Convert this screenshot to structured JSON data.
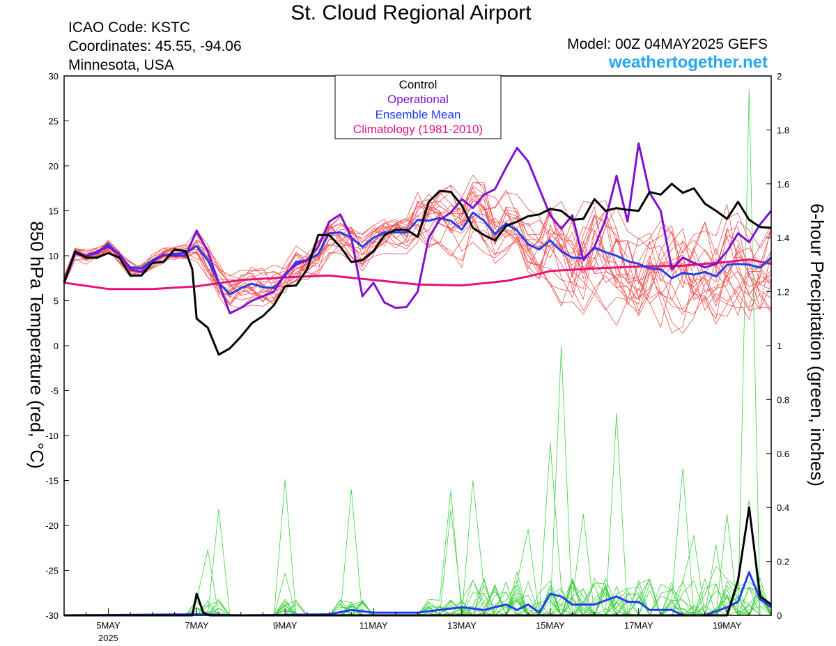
{
  "header": {
    "title": "St. Cloud Regional Airport",
    "icao": "ICAO Code: KSTC",
    "coordinates": "Coordinates: 45.55, -94.06",
    "location": "Minnesota, USA",
    "model": "Model: 00Z 04MAY2025 GEFS",
    "site": "weathertogether.net"
  },
  "colors": {
    "ensemble_temp": "#f05050",
    "ensemble_precip": "#40d040",
    "control": "#000000",
    "operational": "#8010d0",
    "ensemble_mean": "#2040f0",
    "climatology": "#e8107a",
    "site": "#22a7f0"
  },
  "chart_data": {
    "type": "line",
    "y_left_label": "850 hPa Temperature (red, °C)",
    "y_right_label": "6-hour Precipitation (green, inches)",
    "y_left_range": [
      -30,
      30
    ],
    "y_left_ticks": [
      "30",
      "25",
      "20",
      "15",
      "10",
      "5",
      "0",
      "-5",
      "-10",
      "-15",
      "-20",
      "-25",
      "-30"
    ],
    "y_right_range": [
      0,
      2
    ],
    "y_right_ticks": [
      "2",
      "1.8",
      "1.6",
      "1.4",
      "1.2",
      "1",
      "0.8",
      "0.6",
      "0.4",
      "0.2",
      "0"
    ],
    "x_unit": "day of May 2025",
    "x_range": [
      4,
      20
    ],
    "x_ticks": [
      {
        "day": 5,
        "label": "5MAY",
        "sub": "2025"
      },
      {
        "day": 7,
        "label": "7MAY",
        "sub": ""
      },
      {
        "day": 9,
        "label": "9MAY",
        "sub": ""
      },
      {
        "day": 11,
        "label": "11MAY",
        "sub": ""
      },
      {
        "day": 13,
        "label": "13MAY",
        "sub": ""
      },
      {
        "day": 15,
        "label": "15MAY",
        "sub": ""
      },
      {
        "day": 17,
        "label": "17MAY",
        "sub": ""
      },
      {
        "day": 19,
        "label": "19MAY",
        "sub": ""
      }
    ],
    "legend": {
      "placement": "top-center",
      "entries": [
        "Control",
        "Operational",
        "Ensemble Mean",
        "Climatology (1981-2010)"
      ]
    },
    "temp_series": {
      "control": [
        [
          4,
          7
        ],
        [
          4.25,
          10.5
        ],
        [
          4.5,
          9.8
        ],
        [
          4.75,
          9.8
        ],
        [
          5,
          10.3
        ],
        [
          5.25,
          9.8
        ],
        [
          5.5,
          7.8
        ],
        [
          5.75,
          7.8
        ],
        [
          6,
          9.2
        ],
        [
          6.25,
          9.3
        ],
        [
          6.5,
          10.7
        ],
        [
          6.75,
          10.5
        ],
        [
          6.9,
          8.5
        ],
        [
          7,
          3
        ],
        [
          7.25,
          2
        ],
        [
          7.5,
          -1
        ],
        [
          7.75,
          -0.3
        ],
        [
          8,
          1
        ],
        [
          8.25,
          2.5
        ],
        [
          8.5,
          3.3
        ],
        [
          8.75,
          4.5
        ],
        [
          9,
          6.6
        ],
        [
          9.25,
          6.7
        ],
        [
          9.5,
          8.5
        ],
        [
          9.75,
          12.3
        ],
        [
          10,
          12.3
        ],
        [
          10.25,
          11
        ],
        [
          10.5,
          9.3
        ],
        [
          10.75,
          9.5
        ],
        [
          11,
          10.5
        ],
        [
          11.25,
          12.3
        ],
        [
          11.5,
          12.9
        ],
        [
          11.75,
          12.9
        ],
        [
          12,
          12.1
        ],
        [
          12.25,
          16
        ],
        [
          12.5,
          17.2
        ],
        [
          12.75,
          17.1
        ],
        [
          13,
          15.6
        ],
        [
          13.25,
          13.1
        ],
        [
          13.5,
          12.3
        ],
        [
          13.75,
          11.7
        ],
        [
          14,
          13.3
        ],
        [
          14.25,
          13.8
        ],
        [
          14.5,
          14.4
        ],
        [
          14.75,
          14.6
        ],
        [
          15,
          15.2
        ],
        [
          15.25,
          15
        ],
        [
          15.5,
          14
        ],
        [
          15.75,
          14.1
        ],
        [
          16,
          16.3
        ],
        [
          16.25,
          15
        ],
        [
          16.5,
          15.3
        ],
        [
          16.75,
          15.1
        ],
        [
          17,
          15
        ],
        [
          17.25,
          17.1
        ],
        [
          17.5,
          16.8
        ],
        [
          17.75,
          18
        ],
        [
          18,
          17
        ],
        [
          18.25,
          17.5
        ],
        [
          18.5,
          15.8
        ],
        [
          18.75,
          15
        ],
        [
          19,
          14.1
        ],
        [
          19.25,
          16
        ],
        [
          19.5,
          14
        ],
        [
          19.75,
          13.2
        ],
        [
          20,
          13.1
        ]
      ],
      "operational": [
        [
          4,
          7
        ],
        [
          4.25,
          10.2
        ],
        [
          4.5,
          10
        ],
        [
          4.75,
          10.5
        ],
        [
          5,
          11
        ],
        [
          5.25,
          10.2
        ],
        [
          5.5,
          8.5
        ],
        [
          5.75,
          8.2
        ],
        [
          6,
          9.3
        ],
        [
          6.25,
          10.1
        ],
        [
          6.5,
          10
        ],
        [
          6.75,
          10
        ],
        [
          7,
          12.8
        ],
        [
          7.25,
          10.5
        ],
        [
          7.5,
          7
        ],
        [
          7.75,
          3.6
        ],
        [
          8,
          4.2
        ],
        [
          8.25,
          5
        ],
        [
          8.5,
          5.5
        ],
        [
          8.75,
          6
        ],
        [
          9,
          8
        ],
        [
          9.25,
          9
        ],
        [
          9.5,
          9.5
        ],
        [
          9.75,
          11
        ],
        [
          10,
          13.8
        ],
        [
          10.25,
          14.6
        ],
        [
          10.5,
          12
        ],
        [
          10.75,
          5.5
        ],
        [
          11,
          7
        ],
        [
          11.25,
          4.8
        ],
        [
          11.5,
          4.2
        ],
        [
          11.75,
          4.3
        ],
        [
          12,
          6
        ],
        [
          12.25,
          12
        ],
        [
          12.5,
          14
        ],
        [
          12.75,
          14.8
        ],
        [
          13,
          16.3
        ],
        [
          13.25,
          15.3
        ],
        [
          13.5,
          16.8
        ],
        [
          13.75,
          17.4
        ],
        [
          14,
          19.8
        ],
        [
          14.25,
          22
        ],
        [
          14.5,
          20.5
        ],
        [
          14.75,
          17.5
        ],
        [
          15,
          14.5
        ],
        [
          15.25,
          13
        ],
        [
          15.5,
          14.5
        ],
        [
          15.75,
          9.5
        ],
        [
          16,
          11
        ],
        [
          16.25,
          14
        ],
        [
          16.5,
          18.9
        ],
        [
          16.75,
          13.8
        ],
        [
          17,
          22.5
        ],
        [
          17.25,
          17
        ],
        [
          17.5,
          15
        ],
        [
          17.75,
          8.5
        ],
        [
          18,
          9.8
        ],
        [
          18.25,
          9.2
        ],
        [
          18.5,
          8.7
        ],
        [
          18.75,
          9.1
        ],
        [
          19,
          10.5
        ],
        [
          19.25,
          12.5
        ],
        [
          19.5,
          11.5
        ],
        [
          19.75,
          13.5
        ],
        [
          20,
          15
        ]
      ],
      "ensemble_mean": [
        [
          4,
          7.2
        ],
        [
          4.25,
          10.3
        ],
        [
          4.5,
          10
        ],
        [
          4.75,
          10.3
        ],
        [
          5,
          11.3
        ],
        [
          5.25,
          10.1
        ],
        [
          5.5,
          8.7
        ],
        [
          5.75,
          8.6
        ],
        [
          6,
          9.5
        ],
        [
          6.25,
          10.1
        ],
        [
          6.5,
          10.2
        ],
        [
          6.75,
          10.3
        ],
        [
          7,
          11.1
        ],
        [
          7.25,
          9.5
        ],
        [
          7.5,
          7
        ],
        [
          7.75,
          5.7
        ],
        [
          8,
          6.4
        ],
        [
          8.25,
          6.9
        ],
        [
          8.5,
          6.5
        ],
        [
          8.75,
          6.4
        ],
        [
          9,
          7.8
        ],
        [
          9.25,
          9.3
        ],
        [
          9.5,
          9.5
        ],
        [
          9.75,
          10.2
        ],
        [
          10,
          12.5
        ],
        [
          10.25,
          12.6
        ],
        [
          10.5,
          12
        ],
        [
          10.75,
          11
        ],
        [
          11,
          12
        ],
        [
          11.25,
          12.6
        ],
        [
          11.5,
          12.6
        ],
        [
          11.75,
          12.6
        ],
        [
          12,
          14
        ],
        [
          12.25,
          13.9
        ],
        [
          12.5,
          14.2
        ],
        [
          12.75,
          13.9
        ],
        [
          13,
          12.9
        ],
        [
          13.25,
          14.8
        ],
        [
          13.5,
          13.9
        ],
        [
          13.75,
          12.4
        ],
        [
          14,
          13.6
        ],
        [
          14.25,
          12.8
        ],
        [
          14.5,
          11.3
        ],
        [
          14.75,
          10.7
        ],
        [
          15,
          11.7
        ],
        [
          15.25,
          10.5
        ],
        [
          15.5,
          9.8
        ],
        [
          15.75,
          9.7
        ],
        [
          16,
          10.9
        ],
        [
          16.25,
          10.4
        ],
        [
          16.5,
          10
        ],
        [
          16.75,
          9.4
        ],
        [
          17,
          9.1
        ],
        [
          17.25,
          8.6
        ],
        [
          17.5,
          8.5
        ],
        [
          17.75,
          7.5
        ],
        [
          18,
          8.1
        ],
        [
          18.25,
          7.9
        ],
        [
          18.5,
          8.2
        ],
        [
          18.75,
          7.7
        ],
        [
          19,
          9
        ],
        [
          19.25,
          9.1
        ],
        [
          19.5,
          9
        ],
        [
          19.75,
          8.7
        ],
        [
          20,
          9.8
        ]
      ],
      "climatology": [
        [
          4,
          7
        ],
        [
          5,
          6.3
        ],
        [
          6,
          6.3
        ],
        [
          7,
          6.6
        ],
        [
          8,
          7.3
        ],
        [
          9,
          7.6
        ],
        [
          10,
          7.8
        ],
        [
          11,
          7.3
        ],
        [
          12,
          6.8
        ],
        [
          13,
          6.7
        ],
        [
          14,
          7.2
        ],
        [
          14.5,
          7.7
        ],
        [
          15,
          8.3
        ],
        [
          16,
          8.6
        ],
        [
          17,
          8.8
        ],
        [
          18,
          8.9
        ],
        [
          19,
          9.3
        ],
        [
          19.5,
          9.6
        ],
        [
          20,
          9.1
        ]
      ]
    },
    "precip_series": {
      "control": [
        [
          4,
          0
        ],
        [
          6.9,
          0
        ],
        [
          7,
          0.08
        ],
        [
          7.15,
          0.01
        ],
        [
          7.3,
          0
        ],
        [
          19,
          0
        ],
        [
          19.25,
          0.13
        ],
        [
          19.5,
          0.4
        ],
        [
          19.75,
          0.07
        ],
        [
          20,
          0.04
        ]
      ],
      "ensemble_mean": [
        [
          4,
          0
        ],
        [
          7,
          0.004
        ],
        [
          8,
          0
        ],
        [
          10,
          0.004
        ],
        [
          10.5,
          0.02
        ],
        [
          11,
          0.01
        ],
        [
          12,
          0.01
        ],
        [
          13,
          0.03
        ],
        [
          13.5,
          0.02
        ],
        [
          14,
          0.04
        ],
        [
          14.25,
          0.02
        ],
        [
          14.5,
          0.04
        ],
        [
          14.75,
          0.01
        ],
        [
          15,
          0.08
        ],
        [
          15.25,
          0.07
        ],
        [
          15.5,
          0.04
        ],
        [
          16,
          0.04
        ],
        [
          16.5,
          0.07
        ],
        [
          16.75,
          0.05
        ],
        [
          17,
          0.05
        ],
        [
          17.25,
          0.02
        ],
        [
          17.75,
          0.02
        ],
        [
          18,
          0
        ],
        [
          18.5,
          0
        ],
        [
          19,
          0.03
        ],
        [
          19.25,
          0.05
        ],
        [
          19.5,
          0.16
        ],
        [
          19.75,
          0.06
        ],
        [
          20,
          0.03
        ]
      ]
    }
  }
}
